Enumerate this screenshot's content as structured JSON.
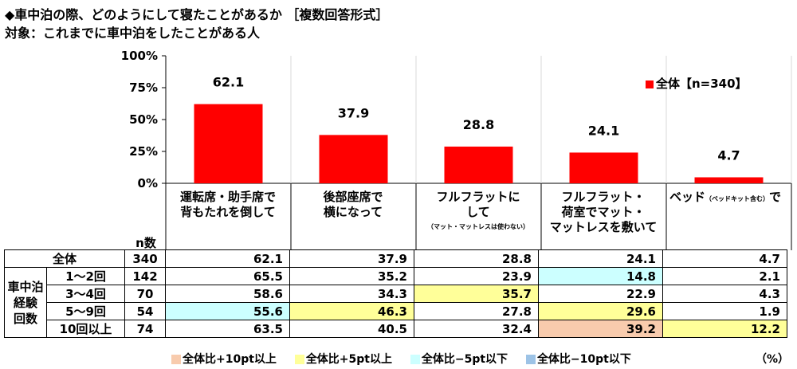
{
  "title": "◆車中泊の際、どのようにして寝たことがあるか ［複数回答形式］",
  "subtitle": "対象：これまでに車中泊をしたことがある人",
  "colors": {
    "bar": "#ff0000",
    "plus10": "#f8cbad",
    "plus5": "#ffff99",
    "minus5": "#ccffff",
    "minus10": "#9dc3e6"
  },
  "chart_data": {
    "type": "bar",
    "categories": [
      "運転席・助手席で背もたれを倒して",
      "後部座席で横になって",
      "フルフラットにして（マット・マットレスは使わない）",
      "フルフラット・荷室でマット・マットレスを敷いて",
      "ベッド（ベッドキット含む）で"
    ],
    "series": [
      {
        "name": "全体【n=340】",
        "values": [
          62.1,
          37.9,
          28.8,
          24.1,
          4.7
        ]
      }
    ],
    "ylim": [
      0,
      100
    ],
    "yticks": [
      "0%",
      "25%",
      "50%",
      "75%",
      "100%"
    ],
    "ytick_values": [
      0,
      25,
      50,
      75,
      100
    ],
    "value_labels": [
      "62.1",
      "37.9",
      "28.8",
      "24.1",
      "4.7"
    ],
    "legend_position": "top-right",
    "grid": "vertical-separators"
  },
  "legend": {
    "label": "全体【n=340】"
  },
  "cat_labels": {
    "c1": [
      "運転席・助手席で",
      "背もたれを倒して"
    ],
    "c2": [
      "後部座席で",
      "横になって"
    ],
    "c3": [
      "フルフラットに",
      "して"
    ],
    "c3_note": "（マット・マットレスは使わない）",
    "c4": [
      "フルフラット・",
      "荷室でマット・",
      "マットレスを敷いて"
    ],
    "c5_main": "ベッド",
    "c5_small": "（ベッドキット含む）",
    "c5_end": "で"
  },
  "table": {
    "n_header": "n数",
    "group_label": [
      "車中泊",
      "経験",
      "回数"
    ],
    "rows": [
      {
        "label": "全体",
        "n": "340",
        "values": [
          "62.1",
          "37.9",
          "28.8",
          "24.1",
          "4.7"
        ],
        "hl": [
          "",
          "",
          "",
          "",
          ""
        ]
      },
      {
        "label": "1～2回",
        "n": "142",
        "values": [
          "65.5",
          "35.2",
          "23.9",
          "14.8",
          "2.1"
        ],
        "hl": [
          "",
          "",
          "",
          "minus5",
          ""
        ]
      },
      {
        "label": "3～4回",
        "n": "70",
        "values": [
          "58.6",
          "34.3",
          "35.7",
          "22.9",
          "4.3"
        ],
        "hl": [
          "",
          "",
          "plus5",
          "",
          ""
        ]
      },
      {
        "label": "5～9回",
        "n": "54",
        "values": [
          "55.6",
          "46.3",
          "27.8",
          "29.6",
          "1.9"
        ],
        "hl": [
          "minus5",
          "plus5",
          "",
          "plus5",
          ""
        ]
      },
      {
        "label": "10回以上",
        "n": "74",
        "values": [
          "63.5",
          "40.5",
          "32.4",
          "39.2",
          "12.2"
        ],
        "hl": [
          "",
          "",
          "",
          "plus10",
          "plus5"
        ]
      }
    ]
  },
  "bottom_legend": [
    "全体比+10pt以上",
    "全体比+5pt以上",
    "全体比−5pt以下",
    "全体比−10pt以下"
  ],
  "unit": "（%）"
}
